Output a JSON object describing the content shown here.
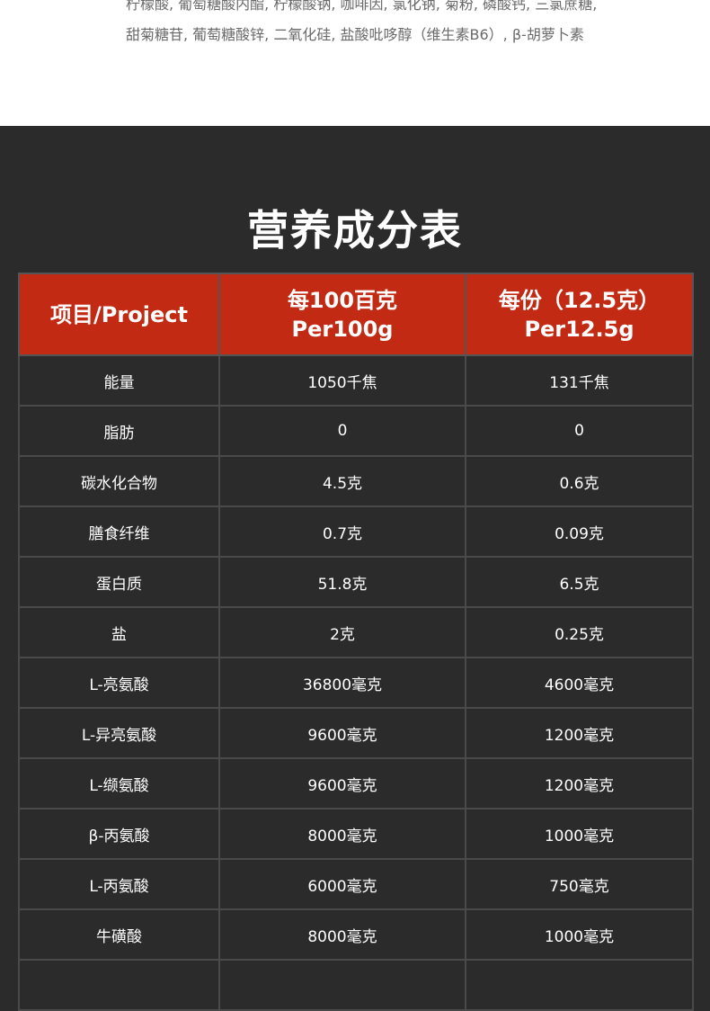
{
  "ingredients": {
    "line1": "柠檬酸, 葡萄糖酸内酯, 柠檬酸钠, 咖啡因, 氯化钠, 菊粉, 磷酸钙, 三氯蔗糖,",
    "line2": "甜菊糖苷, 葡萄糖酸锌, 二氧化硅, 盐酸吡哆醇（维生素B6）, β-胡萝卜素"
  },
  "section_title": "营养成分表",
  "table": {
    "headers": [
      {
        "line1": "项目/Project",
        "line2": ""
      },
      {
        "line1": "每100百克",
        "line2": "Per100g"
      },
      {
        "line1": "每份（12.5克）",
        "line2": "Per12.5g"
      }
    ],
    "rows": [
      [
        "能量",
        "1050千焦",
        "131千焦"
      ],
      [
        "脂肪",
        "0",
        "0"
      ],
      [
        "碳水化合物",
        "4.5克",
        "0.6克"
      ],
      [
        "膳食纤维",
        "0.7克",
        "0.09克"
      ],
      [
        "蛋白质",
        "51.8克",
        "6.5克"
      ],
      [
        "盐",
        "2克",
        "0.25克"
      ],
      [
        "L-亮氨酸",
        "36800毫克",
        "4600毫克"
      ],
      [
        "L-异亮氨酸",
        "9600毫克",
        "1200毫克"
      ],
      [
        "L-缬氨酸",
        "9600毫克",
        "1200毫克"
      ],
      [
        "β-丙氨酸",
        "8000毫克",
        "1000毫克"
      ],
      [
        "L-丙氨酸",
        "6000毫克",
        "750毫克"
      ],
      [
        "牛磺酸",
        "8000毫克",
        "1000毫克"
      ],
      [
        "",
        "",
        ""
      ]
    ]
  },
  "colors": {
    "header_red": "#c22a14",
    "background_dark": "#2b2b2b"
  }
}
